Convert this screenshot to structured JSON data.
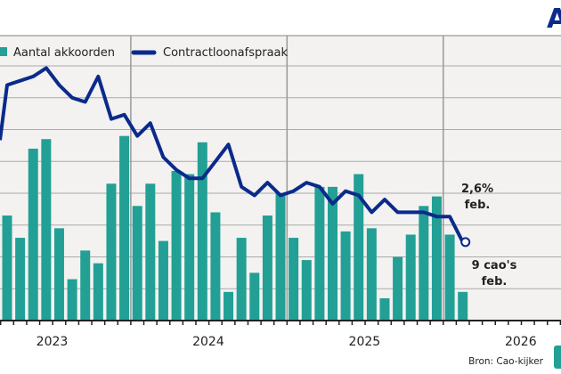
{
  "brand": {
    "logo_text": "AWVN",
    "logo_color": "#0a2a8c"
  },
  "legend": {
    "bars_label": "Aantal akkoorden",
    "line_label": "Contractloonafspraak"
  },
  "annotations": {
    "line_value": "2,6%",
    "line_month": "feb.",
    "bar_value": "9 cao's",
    "bar_month": "feb."
  },
  "source": "Bron: Cao-kijker",
  "colors": {
    "bar": "#22a096",
    "line": "#0a2a8c",
    "background": "#f3f2f1",
    "grid": "#aaaaaa"
  },
  "chart_data": {
    "type": "bar+line",
    "title": "",
    "xlabel": "",
    "ylabel": "",
    "x_tick_labels": [
      "2023",
      "2024",
      "2025",
      "2026"
    ],
    "months": [
      "2023-03",
      "2023-04",
      "2023-05",
      "2023-06",
      "2023-07",
      "2023-08",
      "2023-09",
      "2023-10",
      "2023-11",
      "2023-12",
      "2024-01",
      "2024-02",
      "2024-03",
      "2024-04",
      "2024-05",
      "2024-06",
      "2024-07",
      "2024-08",
      "2024-09",
      "2024-10",
      "2024-11",
      "2024-12",
      "2025-01",
      "2025-02",
      "2025-03",
      "2025-04",
      "2025-05",
      "2025-06",
      "2025-07",
      "2025-08",
      "2025-09",
      "2025-10",
      "2025-11",
      "2025-12",
      "2026-01",
      "2026-02"
    ],
    "series": [
      {
        "name": "Aantal akkoorden",
        "type": "bar",
        "ylim": [
          0,
          80
        ],
        "values": [
          33,
          26,
          54,
          57,
          29,
          13,
          22,
          18,
          43,
          58,
          36,
          43,
          25,
          47,
          46,
          56,
          34,
          9,
          26,
          15,
          33,
          40,
          26,
          19,
          42,
          42,
          28,
          46,
          29,
          7,
          20,
          27,
          36,
          39,
          27,
          9
        ]
      },
      {
        "name": "Contractloonafspraak",
        "type": "line",
        "unit": "%",
        "ylim": [
          0.75,
          6.75
        ],
        "values": [
          6.3,
          6.4,
          6.5,
          6.7,
          6.3,
          6.0,
          5.9,
          6.5,
          5.5,
          5.6,
          5.1,
          5.4,
          4.6,
          4.3,
          4.1,
          4.1,
          4.5,
          4.9,
          3.9,
          3.7,
          4.0,
          3.7,
          3.8,
          4.0,
          3.9,
          3.5,
          3.8,
          3.7,
          3.3,
          3.6,
          3.3,
          3.3,
          3.3,
          3.2,
          3.2,
          2.6
        ]
      }
    ],
    "grid": true,
    "legend_position": "top-left"
  }
}
